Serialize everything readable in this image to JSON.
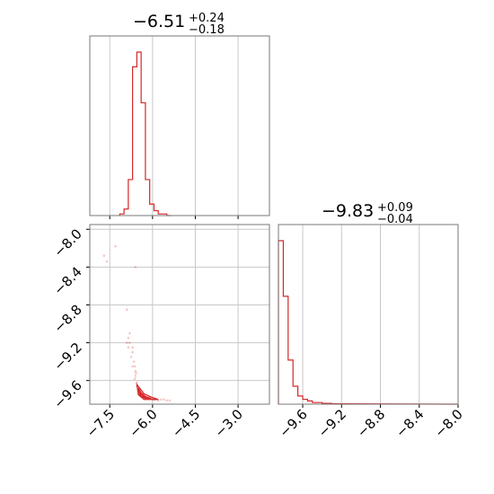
{
  "chart_data": [
    {
      "type": "histogram",
      "panel": "top-left",
      "title": {
        "value": "−6.51",
        "upper": "+0.24",
        "lower": "−0.18"
      },
      "xlim": [
        -8.2,
        -1.9
      ],
      "grid": true,
      "color": "#d62728",
      "bin_edges": [
        -7.15,
        -7.0,
        -6.85,
        -6.7,
        -6.55,
        -6.4,
        -6.25,
        -6.1,
        -5.95,
        -5.8,
        -5.65,
        -5.5,
        -5.35
      ],
      "counts": [
        1,
        4,
        22,
        91,
        100,
        69,
        22,
        7,
        3,
        1,
        1,
        0
      ]
    },
    {
      "type": "scatter",
      "panel": "bottom-left",
      "xlim": [
        -8.2,
        -1.9
      ],
      "ylim": [
        -9.85,
        -7.95
      ],
      "xticks": [
        "−7.5",
        "−6.0",
        "−4.5",
        "−3.0"
      ],
      "yticks": [
        "−8.0",
        "−8.4",
        "−8.8",
        "−9.2",
        "−9.6"
      ],
      "grid": true,
      "color": "#d62728",
      "points": [
        [
          -7.7,
          -8.28
        ],
        [
          -7.6,
          -8.34
        ],
        [
          -7.3,
          -8.18
        ],
        [
          -6.9,
          -8.85
        ],
        [
          -6.8,
          -9.1
        ],
        [
          -6.85,
          -9.25
        ],
        [
          -6.75,
          -9.35
        ],
        [
          -6.7,
          -9.45
        ],
        [
          -6.8,
          -9.2
        ],
        [
          -6.6,
          -9.55
        ],
        [
          -6.65,
          -9.4
        ],
        [
          -6.7,
          -9.3
        ],
        [
          -6.55,
          -9.62
        ],
        [
          -6.5,
          -9.68
        ],
        [
          -6.45,
          -9.7
        ],
        [
          -6.4,
          -9.74
        ],
        [
          -6.3,
          -9.76
        ],
        [
          -6.2,
          -9.78
        ],
        [
          -6.1,
          -9.79
        ],
        [
          -6.0,
          -9.8
        ],
        [
          -5.9,
          -9.8
        ],
        [
          -5.8,
          -9.81
        ],
        [
          -5.7,
          -9.8
        ],
        [
          -5.6,
          -9.8
        ],
        [
          -5.5,
          -9.81
        ],
        [
          -5.4,
          -9.81
        ],
        [
          -6.6,
          -9.5
        ],
        [
          -6.62,
          -9.58
        ],
        [
          -6.55,
          -9.66
        ],
        [
          -6.45,
          -9.72
        ],
        [
          -6.35,
          -9.75
        ],
        [
          -6.25,
          -9.77
        ],
        [
          -6.15,
          -9.78
        ],
        [
          -6.05,
          -9.79
        ],
        [
          -5.95,
          -9.8
        ],
        [
          -6.6,
          -8.4
        ],
        [
          -6.85,
          -9.15
        ],
        [
          -6.9,
          -9.2
        ],
        [
          -6.7,
          -9.25
        ],
        [
          -6.62,
          -9.45
        ],
        [
          -6.58,
          -9.52
        ]
      ],
      "contours": [
        [
          [
            -6.55,
            -9.64
          ],
          [
            -6.5,
            -9.75
          ],
          [
            -6.3,
            -9.8
          ],
          [
            -6.0,
            -9.8
          ],
          [
            -5.8,
            -9.8
          ],
          [
            -6.0,
            -9.78
          ],
          [
            -6.3,
            -9.74
          ],
          [
            -6.45,
            -9.68
          ],
          [
            -6.55,
            -9.64
          ]
        ],
        [
          [
            -6.5,
            -9.68
          ],
          [
            -6.45,
            -9.76
          ],
          [
            -6.25,
            -9.79
          ],
          [
            -6.05,
            -9.79
          ],
          [
            -6.25,
            -9.77
          ],
          [
            -6.4,
            -9.73
          ],
          [
            -6.5,
            -9.68
          ]
        ],
        [
          [
            -6.45,
            -9.72
          ],
          [
            -6.4,
            -9.77
          ],
          [
            -6.2,
            -9.78
          ],
          [
            -6.35,
            -9.76
          ],
          [
            -6.45,
            -9.72
          ]
        ]
      ]
    },
    {
      "type": "histogram",
      "panel": "bottom-right",
      "title": {
        "value": "−9.83",
        "upper": "+0.09",
        "lower": "−0.04"
      },
      "xlim": [
        -9.85,
        -8.0
      ],
      "xticks": [
        "−9.6",
        "−9.2",
        "−8.8",
        "−8.4",
        "−8.0"
      ],
      "grid": true,
      "color": "#d62728",
      "bin_edges": [
        -9.85,
        -9.8,
        -9.75,
        -9.7,
        -9.65,
        -9.6,
        -9.55,
        -9.5,
        -9.45,
        -9.4,
        -9.35,
        -9.3,
        -9.25,
        -9.2
      ],
      "counts": [
        100,
        66,
        27,
        11,
        5,
        3,
        2,
        1,
        1,
        0.5,
        0.5,
        0.3,
        0.2
      ]
    }
  ]
}
